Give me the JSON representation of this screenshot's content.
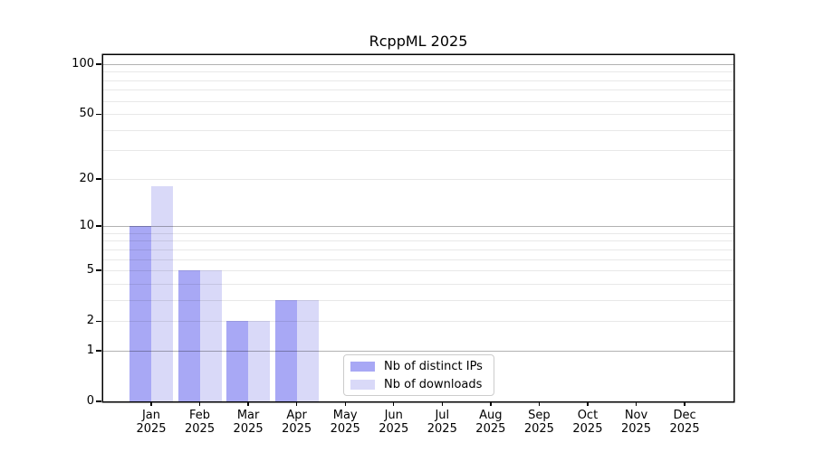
{
  "figure": {
    "background": "#ffffff"
  },
  "chart_data": {
    "type": "bar",
    "title": "RcppML 2025",
    "categories": [
      "Jan",
      "Feb",
      "Mar",
      "Apr",
      "May",
      "Jun",
      "Jul",
      "Aug",
      "Sep",
      "Oct",
      "Nov",
      "Dec"
    ],
    "x_tick_label_line2": "2025",
    "series": [
      {
        "name": "Nb of distinct IPs",
        "color": "#a8a8f5",
        "values": [
          10,
          5,
          2,
          3,
          0,
          0,
          0,
          0,
          0,
          0,
          0,
          0
        ]
      },
      {
        "name": "Nb of downloads",
        "color": "#d9d9f8",
        "values": [
          18,
          5,
          2,
          3,
          0,
          0,
          0,
          0,
          0,
          0,
          0,
          0
        ]
      }
    ],
    "xlabel": "",
    "ylabel": "",
    "yscale": "log1p",
    "ylim": [
      0,
      113
    ],
    "yticks": [
      0,
      1,
      2,
      5,
      10,
      20,
      50,
      100
    ],
    "grid": {
      "orientation": "horizontal",
      "major_values": [
        1,
        10,
        100
      ],
      "minor_values": [
        2,
        3,
        4,
        5,
        6,
        7,
        8,
        9,
        20,
        30,
        40,
        50,
        60,
        70,
        80,
        90
      ],
      "major_color": "rgba(0,0,0,0.30)",
      "minor_color": "rgba(0,0,0,0.09)",
      "drawn_over_bars": true
    },
    "legend": {
      "position": "lower-center",
      "entries": [
        "Nb of distinct IPs",
        "Nb of downloads"
      ]
    }
  }
}
